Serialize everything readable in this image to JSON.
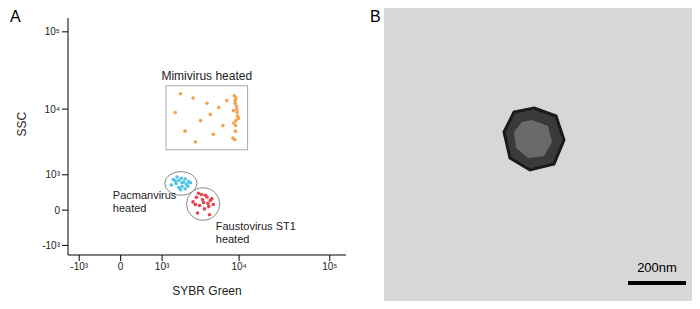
{
  "panel_labels": [
    "A",
    "B"
  ],
  "micrograph": {
    "scale_bar": "200nm"
  },
  "chart_data": {
    "type": "scatter",
    "x_label": "SYBR Green",
    "y_label": "SSC",
    "xlim": [
      -1500,
      150000
    ],
    "ylim": [
      -1500,
      150000
    ],
    "xticks": [
      {
        "value": -1000,
        "label": "-10³"
      },
      0,
      {
        "value": 1000,
        "label": "10³"
      },
      {
        "value": 10000,
        "label": "10⁴"
      },
      {
        "value": 100000,
        "label": "10⁵"
      }
    ],
    "yticks": [
      {
        "value": -1000,
        "label": "-10³"
      },
      0,
      {
        "value": 1000,
        "label": "10³"
      },
      {
        "value": 10000,
        "label": "10⁴"
      },
      {
        "value": 100000,
        "label": "10⁵"
      }
    ],
    "grid": false,
    "series": [
      {
        "name": "Mimivirus heated",
        "color": "#f5a04a",
        "x": [
          8500,
          9000,
          9200,
          9500,
          8800,
          9100,
          9300,
          8700,
          9600,
          9000,
          8900,
          9400,
          9200,
          8600,
          9100,
          9800,
          1600,
          2200,
          2800,
          3500,
          4200,
          5000,
          5800,
          6500,
          7200,
          3000,
          1900,
          4600
        ],
        "y": [
          4000,
          12000,
          7000,
          9000,
          15000,
          5000,
          11000,
          6500,
          8000,
          13000,
          3800,
          10000,
          14000,
          9500,
          6000,
          7500,
          9000,
          5000,
          14000,
          7000,
          12000,
          4500,
          10500,
          6000,
          13000,
          3500,
          16000,
          8500
        ]
      },
      {
        "name": "Pacmanvirus heated",
        "color": "#4fc3e8",
        "x": [
          1400,
          1600,
          1800,
          2000,
          2200,
          2400,
          1700,
          1900,
          2100,
          2300,
          1500,
          2600,
          2000,
          1800,
          2200,
          1650,
          2450,
          1950
        ],
        "y": [
          600,
          750,
          520,
          680,
          820,
          560,
          900,
          450,
          700,
          620,
          800,
          680,
          550,
          760,
          480,
          650,
          720,
          850
        ]
      },
      {
        "name": "Faustovirus ST1 heated",
        "color": "#e8434f",
        "x": [
          2800,
          3100,
          3400,
          3700,
          4000,
          4300,
          4600,
          5000,
          3200,
          3600,
          3900,
          4200,
          4500,
          3000,
          3300,
          3800,
          4400,
          4800
        ],
        "y": [
          150,
          250,
          80,
          200,
          300,
          120,
          180,
          100,
          -50,
          320,
          20,
          260,
          -80,
          100,
          350,
          140,
          60,
          220
        ]
      }
    ]
  }
}
